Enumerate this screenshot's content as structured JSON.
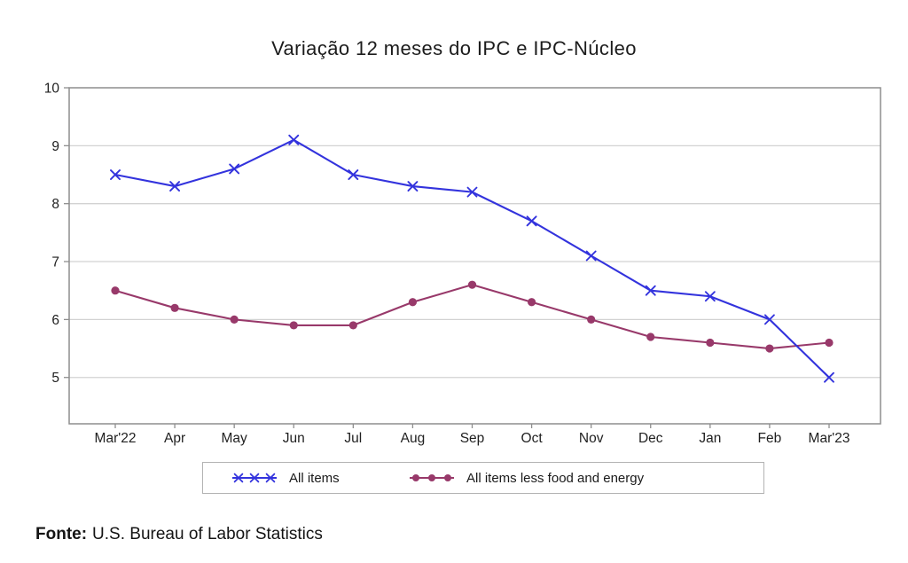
{
  "title": "Variação 12 meses do IPC e IPC-Núcleo",
  "source": {
    "prefix": "Fonte:",
    "text": "U.S. Bureau of Labor Statistics"
  },
  "colors": {
    "grid": "#d2d2d2",
    "axis_border": "#8e8e8e",
    "tick": "#8e8e8e",
    "label_text": "#1f1f1f",
    "legend_border": "#b3b3b3"
  },
  "chart_data": {
    "type": "line",
    "title": "Variação 12 meses do IPC e IPC-Núcleo",
    "categories": [
      "Mar'22",
      "Apr",
      "May",
      "Jun",
      "Jul",
      "Aug",
      "Sep",
      "Oct",
      "Nov",
      "Dec",
      "Jan",
      "Feb",
      "Mar'23"
    ],
    "series": [
      {
        "name": "All items",
        "marker": "x",
        "color": "#3333dd",
        "values": [
          8.5,
          8.3,
          8.6,
          9.1,
          8.5,
          8.3,
          8.2,
          7.7,
          7.1,
          6.5,
          6.4,
          6.0,
          5.0
        ]
      },
      {
        "name": "All items less food and energy",
        "marker": "circle",
        "color": "#98396a",
        "values": [
          6.5,
          6.2,
          6.0,
          5.9,
          5.9,
          6.3,
          6.6,
          6.3,
          6.0,
          5.7,
          5.6,
          5.5,
          5.6
        ]
      }
    ],
    "xlabel": "",
    "ylabel": "",
    "y_ticks": [
      5,
      6,
      7,
      8,
      9,
      10
    ],
    "ylim": [
      4.2,
      10
    ],
    "grid": true,
    "legend_position": "bottom"
  }
}
